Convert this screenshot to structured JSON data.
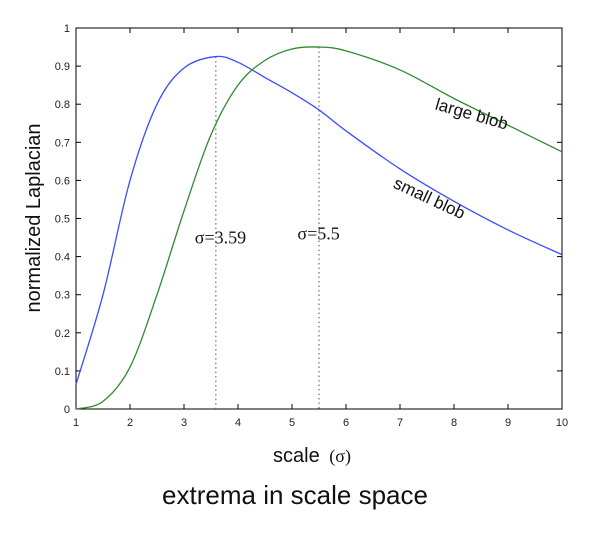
{
  "caption": "extrema in scale space",
  "chart_data": {
    "type": "line",
    "xlabel": "scale",
    "xlabel_symbol": "(σ)",
    "ylabel": "normalized Laplacian",
    "xlim": [
      1,
      10
    ],
    "ylim": [
      0,
      1
    ],
    "xticks": [
      "1",
      "2",
      "3",
      "4",
      "5",
      "6",
      "7",
      "8",
      "9",
      "10"
    ],
    "yticks": [
      "0",
      "0.1",
      "0.2",
      "0.3",
      "0.4",
      "0.5",
      "0.6",
      "0.7",
      "0.8",
      "0.9",
      "1"
    ],
    "grid": false,
    "series": [
      {
        "name": "small blob",
        "color": "#3b4cff",
        "x": [
          1.0,
          1.5,
          2.0,
          2.5,
          3.0,
          3.59,
          4.0,
          4.5,
          5.0,
          5.5,
          6.0,
          7.0,
          8.0,
          9.0,
          10.0
        ],
        "y": [
          0.065,
          0.3,
          0.6,
          0.8,
          0.895,
          0.925,
          0.91,
          0.87,
          0.83,
          0.785,
          0.73,
          0.63,
          0.545,
          0.47,
          0.405
        ]
      },
      {
        "name": "large blob",
        "color": "#2e8b2e",
        "x": [
          1.0,
          1.5,
          2.0,
          2.5,
          3.0,
          3.5,
          4.0,
          4.5,
          5.0,
          5.5,
          6.0,
          7.0,
          8.0,
          9.0,
          10.0
        ],
        "y": [
          0.0,
          0.02,
          0.11,
          0.3,
          0.52,
          0.72,
          0.85,
          0.915,
          0.945,
          0.95,
          0.94,
          0.89,
          0.815,
          0.745,
          0.675
        ]
      }
    ],
    "annotations": [
      {
        "label": "σ=3.59",
        "x": 3.59,
        "y_peak": 0.925,
        "label_x": 3.2,
        "label_y": 0.435
      },
      {
        "label": "σ=5.5",
        "x": 5.5,
        "y_peak": 0.95,
        "label_x": 5.1,
        "label_y": 0.445
      }
    ],
    "curve_labels": [
      {
        "text": "large blob",
        "x": 8.3,
        "y": 0.76,
        "angle": 16
      },
      {
        "text": "small blob",
        "x": 7.5,
        "y": 0.54,
        "angle": 25
      }
    ]
  }
}
